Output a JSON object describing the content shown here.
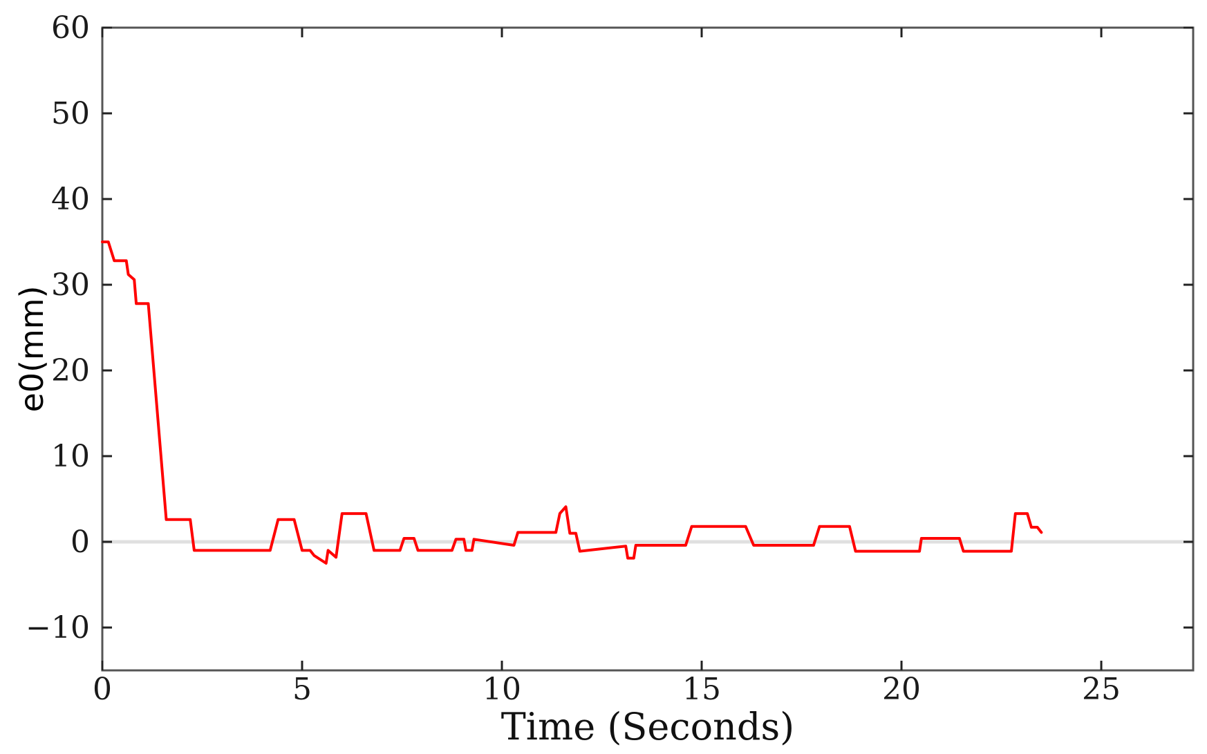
{
  "chart_data": {
    "type": "line",
    "title": "",
    "xlabel": "Time (Seconds)",
    "ylabel": "e0(mm)",
    "xlim": [
      0,
      27.3
    ],
    "ylim": [
      -15,
      60
    ],
    "x_ticks": [
      0,
      5,
      10,
      15,
      20,
      25
    ],
    "y_ticks": [
      -10,
      0,
      10,
      20,
      30,
      40,
      50,
      60
    ],
    "x_tick_labels": [
      "0",
      "5",
      "10",
      "15",
      "20",
      "25"
    ],
    "y_tick_labels": [
      "−10",
      "0",
      "10",
      "20",
      "30",
      "40",
      "50",
      "60"
    ],
    "grid": false,
    "zero_line": true,
    "colors": {
      "series": "#ff0000",
      "zero_line": "#e0e0e0",
      "axes": "#555555"
    },
    "series": [
      {
        "x": [
          0,
          0.15,
          0.3,
          0.6,
          0.65,
          0.8,
          0.85,
          1.15,
          1.6,
          2.2,
          2.3,
          4.2,
          4.4,
          4.8,
          5.0,
          5.2,
          5.3,
          5.6,
          5.65,
          5.85,
          6.0,
          6.6,
          6.8,
          7.45,
          7.55,
          7.8,
          7.9,
          8.75,
          8.85,
          9.05,
          9.1,
          9.25,
          9.3,
          10.3,
          10.4,
          11.35,
          11.45,
          11.6,
          11.7,
          11.85,
          11.95,
          13.1,
          13.15,
          13.3,
          13.35,
          14.6,
          14.75,
          16.1,
          16.3,
          17.8,
          17.95,
          18.7,
          18.85,
          20.45,
          20.5,
          21.45,
          21.55,
          22.75,
          22.85,
          23.15,
          23.25,
          23.4,
          23.5
        ],
        "y": [
          35,
          35,
          32.8,
          32.8,
          31.2,
          30.6,
          27.8,
          27.8,
          2.6,
          2.6,
          -1,
          -1,
          2.6,
          2.6,
          -1,
          -1,
          -1.6,
          -2.5,
          -1,
          -1.8,
          3.3,
          3.3,
          -1,
          -1,
          0.4,
          0.4,
          -1,
          -1,
          0.3,
          0.3,
          -1,
          -1,
          0.3,
          -0.4,
          1.1,
          1.1,
          3.3,
          4.1,
          1,
          1,
          -1.1,
          -0.5,
          -1.9,
          -1.9,
          -0.4,
          -0.4,
          1.8,
          1.8,
          -0.4,
          -0.4,
          1.8,
          1.8,
          -1.1,
          -1.1,
          0.4,
          0.4,
          -1.1,
          -1.1,
          3.3,
          3.3,
          1.7,
          1.7,
          1.1
        ]
      }
    ]
  }
}
